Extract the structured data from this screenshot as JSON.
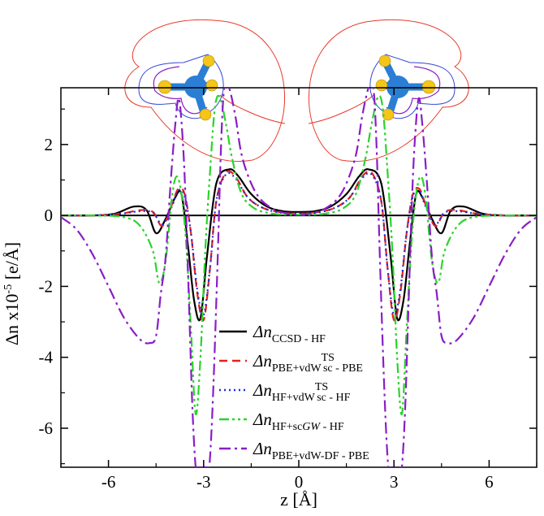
{
  "chart_data": {
    "type": "line",
    "xlabel": "z [Å]",
    "ylabel": "Δn x10⁻⁵ [e/Å]",
    "ylabel_parts": {
      "pre": "Δn x10",
      "exp": "-5",
      "post": " [e/Å]"
    },
    "xlabel_parts": {
      "pre": "z [",
      "ring": "Å",
      "post": "]"
    },
    "xlim": [
      -7.5,
      7.5
    ],
    "ylim": [
      -7.1,
      3.6
    ],
    "xticks": [
      -6,
      -3,
      0,
      3,
      6
    ],
    "xtick_labels": [
      "-6",
      "-3",
      "0",
      "3",
      "6"
    ],
    "yticks": [
      2,
      0,
      -2,
      -4,
      -6
    ],
    "ytick_labels": [
      "2",
      "0",
      "-2",
      "-4",
      "-6"
    ],
    "grid": false,
    "legend_position": "lower-right",
    "series": [
      {
        "name": "Δn CCSD - HF",
        "legend": {
          "main": "Δn",
          "sub": "CCSD",
          "sup": "",
          "tail": " - HF"
        },
        "color": "#000000",
        "dash": "solid",
        "x": [
          -7.5,
          -6.5,
          -5.8,
          -5.2,
          -4.8,
          -4.5,
          -4.2,
          -3.9,
          -3.7,
          -3.5,
          -3.3,
          -3.1,
          -2.9,
          -2.6,
          -2.2,
          -1.9,
          -1.5,
          -1.0,
          -0.5,
          0.0,
          0.5,
          1.0,
          1.5,
          1.9,
          2.2,
          2.6,
          2.9,
          3.1,
          3.3,
          3.5,
          3.7,
          3.9,
          4.2,
          4.5,
          4.8,
          5.2,
          5.8,
          6.5,
          7.5
        ],
        "y": [
          0.0,
          0.0,
          0.05,
          0.25,
          0.15,
          -0.5,
          -0.1,
          0.5,
          0.6,
          -0.8,
          -2.4,
          -2.9,
          -1.2,
          0.9,
          1.3,
          1.1,
          0.6,
          0.25,
          0.12,
          0.1,
          0.12,
          0.25,
          0.6,
          1.1,
          1.3,
          0.9,
          -1.2,
          -2.9,
          -2.4,
          -0.8,
          0.6,
          0.5,
          -0.1,
          -0.5,
          0.15,
          0.25,
          0.05,
          0.0,
          0.0
        ]
      },
      {
        "name": "Δn PBE+vdW sc TS - PBE",
        "legend": {
          "main": "Δn",
          "sub": "PBE+vdW",
          "sub2": "sc",
          "sup": "TS",
          "tail": " - PBE"
        },
        "color": "#e8201a",
        "dash": "10,6",
        "x": [
          -7.5,
          -6.5,
          -5.6,
          -5.0,
          -4.6,
          -4.3,
          -4.0,
          -3.8,
          -3.6,
          -3.4,
          -3.2,
          -3.0,
          -2.8,
          -2.6,
          -2.3,
          -2.0,
          -1.6,
          -1.1,
          -0.5,
          0.0,
          0.5,
          1.1,
          1.6,
          2.0,
          2.3,
          2.6,
          2.8,
          3.0,
          3.2,
          3.4,
          3.6,
          3.8,
          4.0,
          4.3,
          4.6,
          5.0,
          5.6,
          6.5,
          7.5
        ],
        "y": [
          0.0,
          0.0,
          0.05,
          0.15,
          0.1,
          -0.3,
          0.3,
          0.75,
          0.6,
          -0.5,
          -2.2,
          -2.95,
          -1.5,
          0.4,
          1.2,
          1.1,
          0.5,
          0.2,
          0.08,
          0.05,
          0.08,
          0.2,
          0.5,
          1.1,
          1.2,
          0.4,
          -1.5,
          -2.95,
          -2.2,
          -0.5,
          0.6,
          0.75,
          0.3,
          -0.3,
          0.1,
          0.15,
          0.05,
          0.0,
          0.0
        ]
      },
      {
        "name": "Δn HF+vdW sc TS - HF",
        "legend": {
          "main": "Δn",
          "sub": "HF+vdW",
          "sub2": "sc",
          "sup": "TS",
          "tail": " - HF"
        },
        "color": "#1a2fd8",
        "dash": "2,4",
        "x": [
          -7.5,
          -6.5,
          -5.6,
          -5.0,
          -4.6,
          -4.3,
          -4.0,
          -3.8,
          -3.6,
          -3.4,
          -3.2,
          -3.0,
          -2.8,
          -2.6,
          -2.3,
          -2.0,
          -1.6,
          -1.1,
          -0.5,
          0.0,
          0.5,
          1.1,
          1.6,
          2.0,
          2.3,
          2.6,
          2.8,
          3.0,
          3.2,
          3.4,
          3.6,
          3.8,
          4.0,
          4.3,
          4.6,
          5.0,
          5.6,
          6.5,
          7.5
        ],
        "y": [
          0.0,
          0.0,
          0.05,
          0.12,
          0.08,
          -0.25,
          0.25,
          0.7,
          0.55,
          -0.5,
          -2.1,
          -2.8,
          -1.5,
          0.4,
          1.15,
          1.05,
          0.5,
          0.2,
          0.07,
          0.05,
          0.07,
          0.2,
          0.5,
          1.05,
          1.15,
          0.4,
          -1.5,
          -2.8,
          -2.1,
          -0.5,
          0.55,
          0.7,
          0.25,
          -0.25,
          0.08,
          0.12,
          0.05,
          0.0,
          0.0
        ]
      },
      {
        "name": "Δn HF+scGW - HF",
        "legend": {
          "main": "Δn",
          "sub": "HF+sc",
          "subItalic": "GW",
          "sup": "",
          "tail": " - HF"
        },
        "color": "#2ad42a",
        "dash": "12,4,3,4,3,4",
        "x": [
          -7.5,
          -6.5,
          -5.5,
          -5.0,
          -4.6,
          -4.4,
          -4.2,
          -4.0,
          -3.85,
          -3.7,
          -3.55,
          -3.4,
          -3.25,
          -3.1,
          -2.95,
          -2.8,
          -2.65,
          -2.5,
          -2.3,
          -2.1,
          -1.8,
          -1.4,
          -0.9,
          -0.4,
          0.0,
          0.4,
          0.9,
          1.4,
          1.8,
          2.1,
          2.3,
          2.5,
          2.65,
          2.8,
          2.95,
          3.1,
          3.25,
          3.4,
          3.55,
          3.7,
          3.85,
          4.0,
          4.2,
          4.4,
          4.6,
          5.0,
          5.5,
          6.5,
          7.5
        ],
        "y": [
          0.0,
          0.0,
          -0.05,
          -0.3,
          -1.0,
          -1.9,
          -1.3,
          0.5,
          1.1,
          0.6,
          -0.8,
          -3.2,
          -5.6,
          -4.0,
          -1.0,
          1.2,
          3.0,
          3.35,
          2.6,
          1.6,
          0.6,
          0.2,
          0.06,
          0.02,
          0.02,
          0.02,
          0.06,
          0.2,
          0.6,
          1.6,
          2.6,
          3.35,
          3.0,
          1.2,
          -1.0,
          -4.0,
          -5.6,
          -3.2,
          -0.8,
          0.6,
          1.1,
          0.5,
          -1.3,
          -1.9,
          -1.0,
          -0.3,
          -0.05,
          0.0,
          0.0
        ]
      },
      {
        "name": "Δn PBE+vdW-DF - PBE",
        "legend": {
          "main": "Δn",
          "sub": "PBE+vdW-DF",
          "sup": "",
          "tail": " - PBE"
        },
        "color": "#8a1dc7",
        "dash": "14,5,3,5",
        "x": [
          -7.5,
          -7.0,
          -6.5,
          -6.0,
          -5.5,
          -5.0,
          -4.7,
          -4.5,
          -4.35,
          -4.2,
          -4.05,
          -3.9,
          -3.78,
          -3.65,
          -3.55,
          -3.45,
          -3.35,
          -3.25,
          -3.18,
          -3.1,
          -2.9,
          -2.82,
          -2.7,
          -2.55,
          -2.45,
          -2.35,
          -2.2,
          -2.0,
          -1.8,
          -1.5,
          -1.2,
          -0.8,
          -0.4,
          0.0,
          0.4,
          0.8,
          1.2,
          1.5,
          1.8,
          2.0,
          2.2,
          2.35,
          2.45,
          2.55,
          2.7,
          2.82,
          2.9,
          3.1,
          3.18,
          3.25,
          3.35,
          3.45,
          3.55,
          3.65,
          3.78,
          3.9,
          4.05,
          4.2,
          4.35,
          4.5,
          4.7,
          5.0,
          5.5,
          6.0,
          6.5,
          7.0,
          7.5
        ],
        "y": [
          -0.05,
          -0.4,
          -1.1,
          -2.0,
          -2.9,
          -3.5,
          -3.6,
          -3.4,
          -2.2,
          -1.2,
          0.8,
          2.5,
          3.3,
          2.0,
          0.0,
          -2.8,
          -5.5,
          -7.1,
          -7.1,
          -7.1,
          -7.1,
          -7.1,
          -5.0,
          -1.0,
          2.0,
          3.6,
          3.6,
          2.8,
          1.7,
          0.9,
          0.45,
          0.18,
          0.06,
          0.03,
          0.06,
          0.18,
          0.45,
          0.9,
          1.7,
          2.8,
          3.6,
          3.6,
          2.0,
          -1.0,
          -5.0,
          -7.1,
          -7.1,
          -7.1,
          -7.1,
          -7.1,
          -5.5,
          -2.8,
          0.0,
          2.0,
          3.3,
          2.5,
          0.8,
          -1.2,
          -2.2,
          -3.4,
          -3.6,
          -3.5,
          -2.9,
          -2.0,
          -1.1,
          -0.4,
          -0.05
        ]
      }
    ]
  },
  "molecule_colors": {
    "carbon": "#2a7fd4",
    "hydrogen": "#f5c518",
    "contour_red": "#e83a2a",
    "contour_blue": "#3347d6",
    "contour_purple": "#8a1dc7"
  }
}
